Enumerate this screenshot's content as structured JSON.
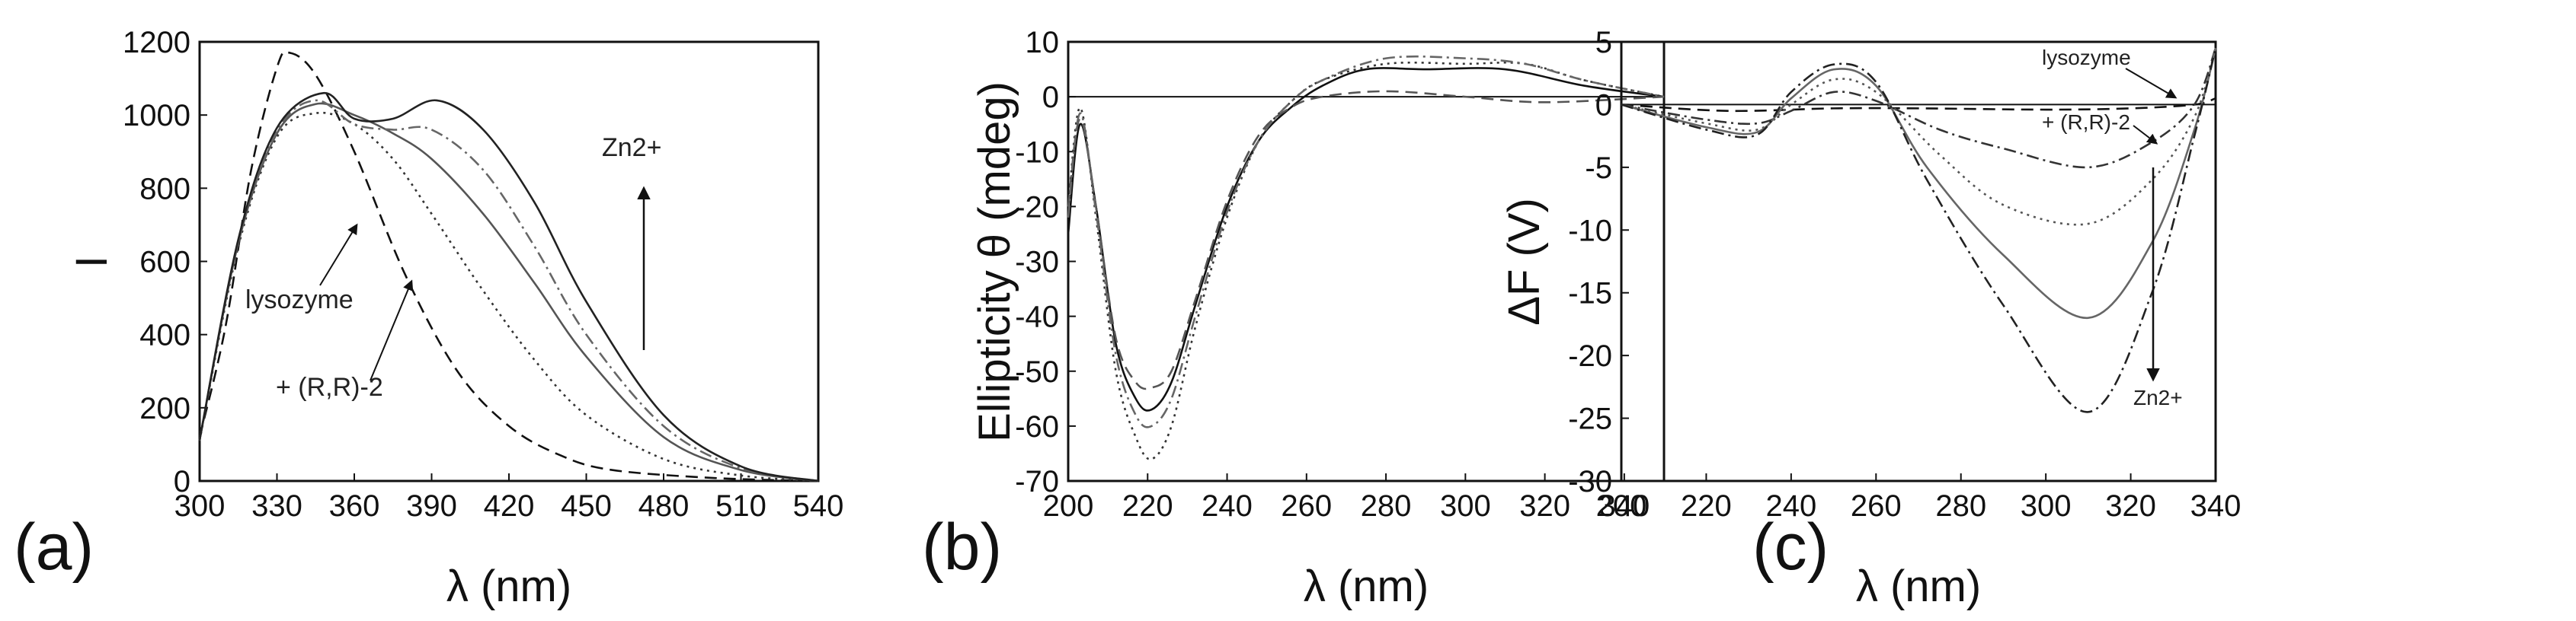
{
  "chart_data": [
    {
      "panel": "(a)",
      "type": "line",
      "xlabel": "λ (nm)",
      "ylabel": "I",
      "xlim": [
        300,
        540
      ],
      "ylim": [
        0,
        1200
      ],
      "xticks": [
        "300",
        "330",
        "360",
        "390",
        "420",
        "450",
        "480",
        "510",
        "540"
      ],
      "yticks": [
        "0",
        "200",
        "400",
        "600",
        "800",
        "1000",
        "1200"
      ],
      "annotations": [
        "Zn2+",
        "lysozyme",
        "+ (R,R)-2"
      ],
      "series": [
        {
          "style": "dash",
          "values": [
            [
              300,
              120
            ],
            [
              310,
              420
            ],
            [
              320,
              850
            ],
            [
              330,
              1130
            ],
            [
              335,
              1170
            ],
            [
              345,
              1110
            ],
            [
              360,
              900
            ],
            [
              380,
              560
            ],
            [
              400,
              300
            ],
            [
              420,
              150
            ],
            [
              440,
              70
            ],
            [
              460,
              30
            ],
            [
              500,
              8
            ],
            [
              540,
              0
            ]
          ]
        },
        {
          "style": "dot",
          "values": [
            [
              300,
              110
            ],
            [
              315,
              640
            ],
            [
              330,
              940
            ],
            [
              345,
              1005
            ],
            [
              360,
              975
            ],
            [
              375,
              880
            ],
            [
              390,
              730
            ],
            [
              410,
              520
            ],
            [
              430,
              330
            ],
            [
              450,
              180
            ],
            [
              480,
              60
            ],
            [
              510,
              15
            ],
            [
              540,
              0
            ]
          ]
        },
        {
          "style": "solid",
          "values": [
            [
              300,
              112
            ],
            [
              315,
              650
            ],
            [
              330,
              950
            ],
            [
              345,
              1030
            ],
            [
              360,
              1000
            ],
            [
              375,
              950
            ],
            [
              390,
              880
            ],
            [
              410,
              730
            ],
            [
              430,
              540
            ],
            [
              450,
              340
            ],
            [
              480,
              120
            ],
            [
              510,
              30
            ],
            [
              540,
              0
            ]
          ]
        },
        {
          "style": "dashdot",
          "values": [
            [
              300,
              112
            ],
            [
              315,
              655
            ],
            [
              330,
              955
            ],
            [
              345,
              1040
            ],
            [
              360,
              975
            ],
            [
              375,
              960
            ],
            [
              390,
              960
            ],
            [
              410,
              850
            ],
            [
              430,
              640
            ],
            [
              450,
              400
            ],
            [
              480,
              150
            ],
            [
              510,
              35
            ],
            [
              540,
              0
            ]
          ]
        },
        {
          "style": "solid",
          "values": [
            [
              300,
              112
            ],
            [
              315,
              660
            ],
            [
              330,
              965
            ],
            [
              348,
              1060
            ],
            [
              360,
              990
            ],
            [
              375,
              990
            ],
            [
              392,
              1040
            ],
            [
              410,
              960
            ],
            [
              430,
              760
            ],
            [
              450,
              490
            ],
            [
              480,
              180
            ],
            [
              510,
              40
            ],
            [
              540,
              0
            ]
          ]
        }
      ]
    },
    {
      "panel": "(b)",
      "type": "line",
      "xlabel": "λ (nm)",
      "ylabel": "Ellipticity θ (mdeg)",
      "xlim": [
        200,
        350
      ],
      "ylim": [
        -70,
        10
      ],
      "xticks": [
        "200",
        "220",
        "240",
        "260",
        "280",
        "300",
        "320",
        "340"
      ],
      "yticks": [
        "-70",
        "-60",
        "-50",
        "-40",
        "-30",
        "-20",
        "-10",
        "0",
        "10"
      ],
      "series": [
        {
          "style": "solid",
          "values": [
            [
              200,
              -25
            ],
            [
              203,
              -5
            ],
            [
              207,
              -20
            ],
            [
              212,
              -45
            ],
            [
              217,
              -55
            ],
            [
              221,
              -57
            ],
            [
              226,
              -52
            ],
            [
              232,
              -38
            ],
            [
              240,
              -20
            ],
            [
              248,
              -8
            ],
            [
              256,
              -2
            ],
            [
              264,
              2
            ],
            [
              275,
              5
            ],
            [
              290,
              5
            ],
            [
              310,
              5
            ],
            [
              330,
              2
            ],
            [
              350,
              0
            ]
          ]
        },
        {
          "style": "dot",
          "values": [
            [
              200,
              -20
            ],
            [
              203,
              -2
            ],
            [
              207,
              -22
            ],
            [
              212,
              -50
            ],
            [
              217,
              -62
            ],
            [
              221,
              -66
            ],
            [
              226,
              -60
            ],
            [
              232,
              -42
            ],
            [
              240,
              -22
            ],
            [
              248,
              -8
            ],
            [
              256,
              -1
            ],
            [
              264,
              3
            ],
            [
              280,
              6
            ],
            [
              300,
              6
            ],
            [
              315,
              6
            ],
            [
              330,
              3
            ],
            [
              350,
              0
            ]
          ]
        },
        {
          "style": "dash",
          "values": [
            [
              200,
              -20
            ],
            [
              203,
              -4
            ],
            [
              207,
              -20
            ],
            [
              212,
              -44
            ],
            [
              217,
              -52
            ],
            [
              221,
              -53
            ],
            [
              226,
              -50
            ],
            [
              232,
              -37
            ],
            [
              240,
              -19
            ],
            [
              248,
              -7
            ],
            [
              256,
              -2
            ],
            [
              264,
              0
            ],
            [
              280,
              1
            ],
            [
              300,
              0
            ],
            [
              320,
              -1
            ],
            [
              350,
              0
            ]
          ]
        },
        {
          "style": "dashdot",
          "values": [
            [
              200,
              -22
            ],
            [
              203,
              -3
            ],
            [
              207,
              -21
            ],
            [
              212,
              -47
            ],
            [
              217,
              -58
            ],
            [
              221,
              -60
            ],
            [
              226,
              -55
            ],
            [
              232,
              -40
            ],
            [
              240,
              -21
            ],
            [
              248,
              -8
            ],
            [
              256,
              -1
            ],
            [
              264,
              3
            ],
            [
              280,
              7
            ],
            [
              300,
              7
            ],
            [
              315,
              6
            ],
            [
              330,
              3
            ],
            [
              350,
              0
            ]
          ]
        }
      ]
    },
    {
      "panel": "(c)",
      "type": "line",
      "xlabel": "λ (nm)",
      "ylabel": "ΔF (V)",
      "xlim": [
        200,
        340
      ],
      "ylim": [
        -30,
        5
      ],
      "xticks": [
        "200",
        "220",
        "240",
        "260",
        "280",
        "300",
        "320",
        "340"
      ],
      "yticks": [
        "-30",
        "-25",
        "-20",
        "-15",
        "-10",
        "-5",
        "0",
        "5"
      ],
      "annotations": [
        "lysozyme",
        "+ (R,R)-2",
        "Zn2+"
      ],
      "series": [
        {
          "style": "dash",
          "values": [
            [
              200,
              0
            ],
            [
              225,
              -0.5
            ],
            [
              250,
              -0.3
            ],
            [
              270,
              -0.3
            ],
            [
              300,
              -0.4
            ],
            [
              320,
              -0.3
            ],
            [
              335,
              0
            ],
            [
              340,
              0.5
            ]
          ]
        },
        {
          "style": "dashdot",
          "values": [
            [
              200,
              0
            ],
            [
              220,
              -1.2
            ],
            [
              232,
              -1.5
            ],
            [
              240,
              -0.5
            ],
            [
              250,
              1
            ],
            [
              260,
              0.3
            ],
            [
              275,
              -2
            ],
            [
              290,
              -3.5
            ],
            [
              310,
              -5
            ],
            [
              325,
              -3
            ],
            [
              335,
              0
            ],
            [
              340,
              4.5
            ]
          ]
        },
        {
          "style": "dot",
          "values": [
            [
              200,
              0
            ],
            [
              220,
              -1.5
            ],
            [
              232,
              -2
            ],
            [
              240,
              0
            ],
            [
              250,
              2
            ],
            [
              260,
              1
            ],
            [
              275,
              -4
            ],
            [
              290,
              -8
            ],
            [
              310,
              -9.5
            ],
            [
              325,
              -6
            ],
            [
              335,
              -1
            ],
            [
              340,
              4.5
            ]
          ]
        },
        {
          "style": "solid",
          "values": [
            [
              200,
              0
            ],
            [
              220,
              -1.8
            ],
            [
              232,
              -2.2
            ],
            [
              240,
              0.5
            ],
            [
              250,
              2.8
            ],
            [
              260,
              1.5
            ],
            [
              272,
              -5
            ],
            [
              290,
              -12
            ],
            [
              310,
              -17
            ],
            [
              325,
              -11
            ],
            [
              335,
              -2
            ],
            [
              340,
              4.5
            ]
          ]
        },
        {
          "style": "dashdot",
          "values": [
            [
              200,
              0
            ],
            [
              220,
              -2
            ],
            [
              232,
              -2.4
            ],
            [
              240,
              1
            ],
            [
              250,
              3.2
            ],
            [
              260,
              1.8
            ],
            [
              272,
              -6
            ],
            [
              290,
              -16
            ],
            [
              310,
              -24.5
            ],
            [
              325,
              -15
            ],
            [
              335,
              -2.5
            ],
            [
              340,
              4.5
            ]
          ]
        }
      ]
    }
  ]
}
